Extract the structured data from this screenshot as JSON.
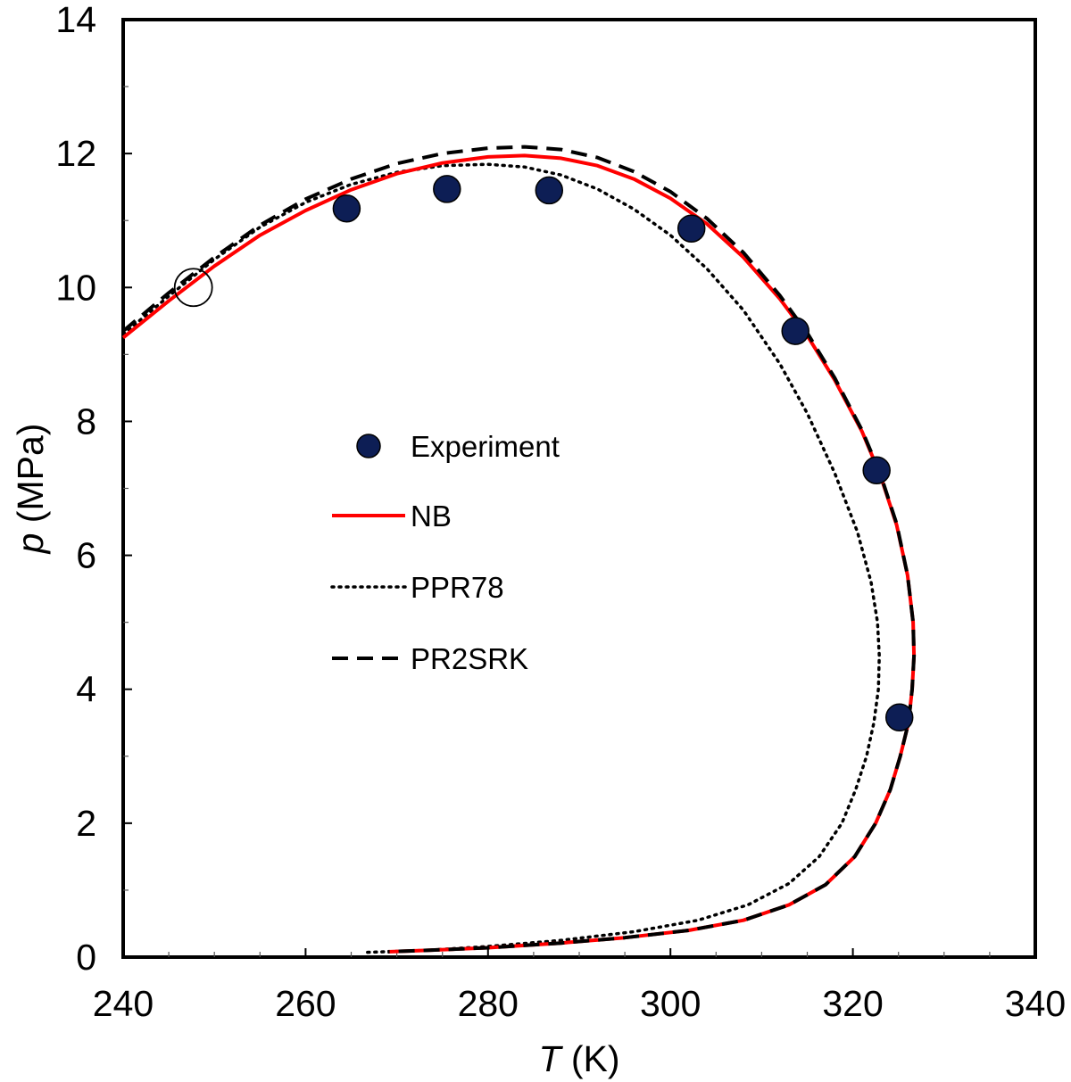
{
  "chart_data": {
    "type": "scatter",
    "title": "",
    "xlabel_var": "T",
    "xlabel_unit": " (K)",
    "ylabel_var": "p",
    "ylabel_unit": " (MPa)",
    "xlim": [
      240,
      340
    ],
    "ylim": [
      0,
      14
    ],
    "x_ticks": [
      240,
      260,
      280,
      300,
      320,
      340
    ],
    "y_ticks": [
      0,
      2,
      4,
      6,
      8,
      10,
      12,
      14
    ],
    "x_tick_labels": [
      "240",
      "260",
      "280",
      "300",
      "320",
      "340"
    ],
    "y_tick_labels": [
      "0",
      "2",
      "4",
      "6",
      "8",
      "10",
      "12",
      "14"
    ],
    "grid": false,
    "legend_position": "center-left",
    "series": [
      {
        "name": "Experiment",
        "style": "marker",
        "color": "#0d1e55",
        "points": [
          [
            264.5,
            11.18
          ],
          [
            275.5,
            11.47
          ],
          [
            286.7,
            11.45
          ],
          [
            302.3,
            10.88
          ],
          [
            313.7,
            9.35
          ],
          [
            322.6,
            7.27
          ],
          [
            325.1,
            3.58
          ]
        ]
      },
      {
        "name": "NB",
        "style": "solid",
        "color": "#ff0000",
        "points": [
          [
            240.0,
            9.25
          ],
          [
            245.0,
            9.8
          ],
          [
            250.0,
            10.32
          ],
          [
            255.0,
            10.78
          ],
          [
            260.0,
            11.15
          ],
          [
            265.0,
            11.46
          ],
          [
            270.0,
            11.7
          ],
          [
            275.0,
            11.86
          ],
          [
            280.0,
            11.95
          ],
          [
            284.0,
            11.97
          ],
          [
            288.0,
            11.93
          ],
          [
            292.0,
            11.82
          ],
          [
            296.0,
            11.62
          ],
          [
            300.0,
            11.33
          ],
          [
            304.0,
            10.95
          ],
          [
            308.0,
            10.45
          ],
          [
            312.0,
            9.83
          ],
          [
            315.0,
            9.28
          ],
          [
            318.0,
            8.62
          ],
          [
            321.0,
            7.85
          ],
          [
            323.0,
            7.2
          ],
          [
            324.8,
            6.45
          ],
          [
            326.0,
            5.7
          ],
          [
            326.6,
            5.0
          ],
          [
            326.7,
            4.5
          ],
          [
            326.5,
            4.0
          ],
          [
            326.1,
            3.5
          ],
          [
            325.2,
            3.0
          ],
          [
            324.1,
            2.5
          ],
          [
            322.5,
            2.0
          ],
          [
            320.2,
            1.5
          ],
          [
            317.0,
            1.08
          ],
          [
            313.0,
            0.78
          ],
          [
            308.0,
            0.55
          ],
          [
            302.0,
            0.4
          ],
          [
            295.0,
            0.29
          ],
          [
            288.0,
            0.21
          ],
          [
            280.0,
            0.14
          ],
          [
            273.0,
            0.1
          ],
          [
            269.0,
            0.08
          ]
        ]
      },
      {
        "name": "PPR78",
        "style": "dotted",
        "color": "#000000",
        "points": [
          [
            240.0,
            9.3
          ],
          [
            245.0,
            9.87
          ],
          [
            250.0,
            10.42
          ],
          [
            255.0,
            10.9
          ],
          [
            260.0,
            11.27
          ],
          [
            265.0,
            11.54
          ],
          [
            270.0,
            11.72
          ],
          [
            275.0,
            11.82
          ],
          [
            280.0,
            11.84
          ],
          [
            284.0,
            11.8
          ],
          [
            288.0,
            11.68
          ],
          [
            292.0,
            11.47
          ],
          [
            296.0,
            11.17
          ],
          [
            300.0,
            10.78
          ],
          [
            304.0,
            10.28
          ],
          [
            308.0,
            9.66
          ],
          [
            312.0,
            8.86
          ],
          [
            315.0,
            8.12
          ],
          [
            318.0,
            7.23
          ],
          [
            320.5,
            6.35
          ],
          [
            322.0,
            5.6
          ],
          [
            322.7,
            5.0
          ],
          [
            322.9,
            4.5
          ],
          [
            322.8,
            4.0
          ],
          [
            322.3,
            3.5
          ],
          [
            321.5,
            3.0
          ],
          [
            320.3,
            2.5
          ],
          [
            318.8,
            2.0
          ],
          [
            316.3,
            1.5
          ],
          [
            313.0,
            1.1
          ],
          [
            308.5,
            0.78
          ],
          [
            303.0,
            0.55
          ],
          [
            296.0,
            0.38
          ],
          [
            288.0,
            0.25
          ],
          [
            280.0,
            0.16
          ],
          [
            273.0,
            0.1
          ],
          [
            266.5,
            0.07
          ]
        ]
      },
      {
        "name": "PR2SRK",
        "style": "dashed",
        "color": "#000000",
        "points": [
          [
            240.0,
            9.35
          ],
          [
            245.0,
            9.92
          ],
          [
            250.0,
            10.45
          ],
          [
            255.0,
            10.93
          ],
          [
            260.0,
            11.32
          ],
          [
            265.0,
            11.62
          ],
          [
            270.0,
            11.85
          ],
          [
            275.0,
            12.0
          ],
          [
            280.0,
            12.08
          ],
          [
            284.0,
            12.1
          ],
          [
            288.0,
            12.06
          ],
          [
            292.0,
            11.94
          ],
          [
            296.0,
            11.73
          ],
          [
            300.0,
            11.43
          ],
          [
            304.0,
            11.03
          ],
          [
            308.0,
            10.52
          ],
          [
            312.0,
            9.88
          ],
          [
            315.0,
            9.32
          ],
          [
            318.0,
            8.65
          ],
          [
            321.0,
            7.87
          ],
          [
            323.0,
            7.22
          ],
          [
            324.8,
            6.47
          ],
          [
            326.0,
            5.7
          ],
          [
            326.6,
            5.0
          ],
          [
            326.7,
            4.5
          ],
          [
            326.5,
            4.0
          ],
          [
            326.1,
            3.5
          ],
          [
            325.2,
            3.0
          ],
          [
            324.1,
            2.5
          ],
          [
            322.5,
            2.0
          ],
          [
            320.2,
            1.5
          ],
          [
            317.0,
            1.08
          ],
          [
            313.0,
            0.78
          ],
          [
            308.0,
            0.55
          ],
          [
            302.0,
            0.4
          ],
          [
            295.0,
            0.29
          ],
          [
            288.0,
            0.21
          ],
          [
            280.0,
            0.14
          ],
          [
            273.0,
            0.1
          ],
          [
            269.0,
            0.08
          ]
        ]
      }
    ],
    "annotations": [
      {
        "kind": "open-circle-marker",
        "x": 247.7,
        "y": 10.0
      }
    ]
  }
}
